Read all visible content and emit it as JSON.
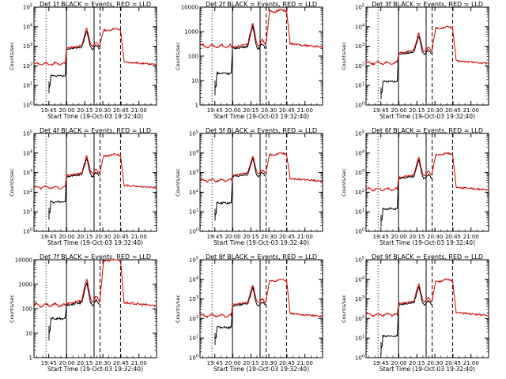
{
  "chart_data": [
    {
      "type": "line",
      "title": "Det 1f BLACK = Events, RED = LLD",
      "ylabel": "Counts/sec",
      "xlabel": "Start Time (19-Oct-03 19:32:40)",
      "x_ticks": [
        "19:45",
        "20:00",
        "20:15",
        "20:30",
        "20:45",
        "21:00"
      ],
      "y_scale": "log",
      "y_ticks": [
        "10^0",
        "10^1",
        "10^2",
        "10^3",
        "10^4",
        "10^5"
      ],
      "y_range": [
        1,
        100000
      ],
      "series": [
        {
          "name": "BLACK",
          "color": "#000000",
          "label": "Events"
        },
        {
          "name": "RED",
          "color": "#d40000",
          "label": "LLD"
        }
      ]
    },
    {
      "type": "line",
      "title": "Det 2f BLACK = Events, RED = LLD",
      "ylabel": "Counts/sec",
      "xlabel": "Start Time (19-Oct-03 19:32:40)",
      "x_ticks": [
        "19:45",
        "20:00",
        "20:15",
        "20:30",
        "20:45",
        "21:00"
      ],
      "y_scale": "log",
      "y_ticks": [
        "1",
        "10",
        "100",
        "1000",
        "10000"
      ],
      "y_range": [
        1,
        10000
      ],
      "series": [
        {
          "name": "BLACK",
          "color": "#000000",
          "label": "Events"
        },
        {
          "name": "RED",
          "color": "#d40000",
          "label": "LLD"
        }
      ]
    },
    {
      "type": "line",
      "title": "Det 3f BLACK = Events, RED = LLD",
      "ylabel": "Counts/sec",
      "xlabel": "Start Time (19-Oct-03 19:32:40)",
      "x_ticks": [
        "19:45",
        "20:00",
        "20:15",
        "20:30",
        "20:45",
        "21:00"
      ],
      "y_scale": "log",
      "y_ticks": [
        "10^0",
        "10^1",
        "10^2",
        "10^3",
        "10^4",
        "10^5"
      ],
      "y_range": [
        1,
        100000
      ],
      "series": [
        {
          "name": "BLACK",
          "color": "#000000",
          "label": "Events"
        },
        {
          "name": "RED",
          "color": "#d40000",
          "label": "LLD"
        }
      ]
    },
    {
      "type": "line",
      "title": "Det 4f BLACK = Events, RED = LLD",
      "ylabel": "Counts/sec",
      "xlabel": "Start Time (19-Oct-03 19:32:40)",
      "x_ticks": [
        "19:45",
        "20:00",
        "20:15",
        "20:30",
        "20:45",
        "21:00"
      ],
      "y_scale": "log",
      "y_ticks": [
        "10^0",
        "10^1",
        "10^2",
        "10^3",
        "10^4",
        "10^5"
      ],
      "y_range": [
        1,
        100000
      ],
      "series": [
        {
          "name": "BLACK",
          "color": "#000000",
          "label": "Events"
        },
        {
          "name": "RED",
          "color": "#d40000",
          "label": "LLD"
        }
      ]
    },
    {
      "type": "line",
      "title": "Det 5f BLACK = Events, RED = LLD",
      "ylabel": "Counts/sec",
      "xlabel": "Start Time (19-Oct-03 19:32:40)",
      "x_ticks": [
        "19:45",
        "20:00",
        "20:15",
        "20:30",
        "20:45",
        "21:00"
      ],
      "y_scale": "log",
      "y_ticks": [
        "10^0",
        "10^1",
        "10^2",
        "10^3",
        "10^4",
        "10^5"
      ],
      "y_range": [
        1,
        100000
      ],
      "series": [
        {
          "name": "BLACK",
          "color": "#000000",
          "label": "Events"
        },
        {
          "name": "RED",
          "color": "#d40000",
          "label": "LLD"
        }
      ]
    },
    {
      "type": "line",
      "title": "Det 6f BLACK = Events, RED = LLD",
      "ylabel": "Counts/sec",
      "xlabel": "Start Time (19-Oct-03 19:32:40)",
      "x_ticks": [
        "19:45",
        "20:00",
        "20:15",
        "20:30",
        "20:45",
        "21:00"
      ],
      "y_scale": "log",
      "y_ticks": [
        "10^0",
        "10^1",
        "10^2",
        "10^3",
        "10^4",
        "10^5"
      ],
      "y_range": [
        1,
        100000
      ],
      "series": [
        {
          "name": "BLACK",
          "color": "#000000",
          "label": "Events"
        },
        {
          "name": "RED",
          "color": "#d40000",
          "label": "LLD"
        }
      ]
    },
    {
      "type": "line",
      "title": "Det 7f BLACK = Events, RED = LLD",
      "ylabel": "Counts/sec",
      "xlabel": "Start Time (19-Oct-03 19:32:40)",
      "x_ticks": [
        "19:45",
        "20:00",
        "20:15",
        "20:30",
        "20:45",
        "21:00"
      ],
      "y_scale": "log",
      "y_ticks": [
        "1",
        "10",
        "100",
        "1000",
        "10000"
      ],
      "y_range": [
        1,
        10000
      ],
      "series": [
        {
          "name": "BLACK",
          "color": "#000000",
          "label": "Events"
        },
        {
          "name": "RED",
          "color": "#d40000",
          "label": "LLD"
        }
      ]
    },
    {
      "type": "line",
      "title": "Det 8f BLACK = Events, RED = LLD",
      "ylabel": "Counts/sec",
      "xlabel": "Start Time (19-Oct-03 19:32:40)",
      "x_ticks": [
        "19:45",
        "20:00",
        "20:15",
        "20:30",
        "20:45",
        "21:00"
      ],
      "y_scale": "log",
      "y_ticks": [
        "10^0",
        "10^1",
        "10^2",
        "10^3",
        "10^4",
        "10^5"
      ],
      "y_range": [
        1,
        100000
      ],
      "series": [
        {
          "name": "BLACK",
          "color": "#000000",
          "label": "Events"
        },
        {
          "name": "RED",
          "color": "#d40000",
          "label": "LLD"
        }
      ]
    },
    {
      "type": "line",
      "title": "Det 9f BLACK = Events, RED = LLD",
      "ylabel": "Counts/sec",
      "xlabel": "Start Time (19-Oct-03 19:32:40)",
      "x_ticks": [
        "19:45",
        "20:00",
        "20:15",
        "20:30",
        "20:45",
        "21:00"
      ],
      "y_scale": "log",
      "y_ticks": [
        "10^0",
        "10^1",
        "10^2",
        "10^3",
        "10^4",
        "10^5"
      ],
      "y_range": [
        1,
        100000
      ],
      "series": [
        {
          "name": "BLACK",
          "color": "#000000",
          "label": "Events"
        },
        {
          "name": "RED",
          "color": "#d40000",
          "label": "LLD"
        }
      ]
    }
  ]
}
